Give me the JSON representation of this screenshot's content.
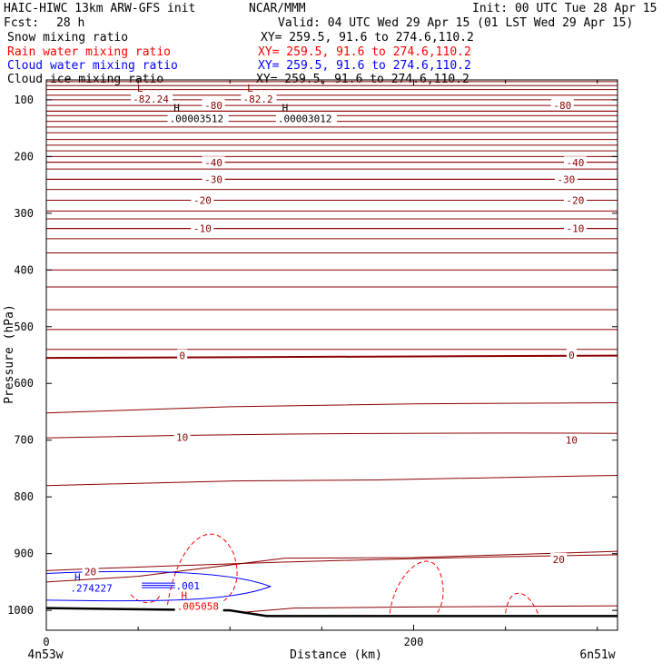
{
  "header": {
    "model_line": "HAIC-HIWC 13km ARW-GFS init",
    "org": "NCAR/MMM",
    "init": "Init: 00 UTC Tue 28 Apr 15",
    "fcst_label": "Fcst:",
    "fcst_value": "28 h",
    "valid": "Valid: 04 UTC Wed 29 Apr 15 (01 LST Wed 29 Apr 15)",
    "fields": [
      {
        "name": "Snow mixing ratio",
        "xy": "XY= 259.5, 91.6 to 274.6,110.2",
        "color": "#000000"
      },
      {
        "name": "Rain water mixing ratio",
        "xy": "XY= 259.5, 91.6 to 274.6,110.2",
        "color": "#ff0000"
      },
      {
        "name": "Cloud water mixing ratio",
        "xy": "XY= 259.5, 91.6 to 274.6,110.2",
        "color": "#0000ff"
      },
      {
        "name": "Cloud ice mixing ratio",
        "xy": "XY= 259.5, 91.6 to 274.6,110.2",
        "color": "#000000"
      }
    ]
  },
  "chart_data": {
    "type": "cross-section contour",
    "xlabel": "Distance (km)",
    "ylabel": "Pressure (hPa)",
    "x_ticks": [
      0,
      200
    ],
    "x_minor_ticks": [
      50,
      100,
      150,
      250,
      300
    ],
    "xlim": [
      0,
      311
    ],
    "y_ticks": [
      100,
      200,
      300,
      400,
      500,
      600,
      700,
      800,
      900,
      1000
    ],
    "y_scale": "linear (pressure increasing downward)",
    "ylim": [
      1035,
      65
    ],
    "x_end_labels": {
      "left": "4n53w",
      "right": "6n51w"
    },
    "colors": {
      "temperature": "#8b0000",
      "rain": "#ff0000",
      "cloud_water": "#0000ff",
      "terrain": "#000000"
    },
    "temperature_contours": [
      {
        "label": "-80",
        "p_left": 120,
        "p_right": 120
      },
      {
        "label": "-40",
        "p_left": 210,
        "p_right": 210
      },
      {
        "label": "-30",
        "p_left": 240,
        "p_right": 240
      },
      {
        "label": "-20",
        "p_left": 277,
        "p_right": 277
      },
      {
        "label": "-10",
        "p_left": 327,
        "p_right": 327
      },
      {
        "label": "0",
        "p_left": 555,
        "p_right": 551,
        "bold": true
      },
      {
        "label": "10",
        "p_left": 696,
        "p_right": 688
      },
      {
        "label": "20",
        "p_left": 930,
        "p_right": 902
      }
    ],
    "contour_labels": [
      {
        "text": "-80",
        "x": 91,
        "p": 110
      },
      {
        "text": "-80",
        "x": 281,
        "p": 110
      },
      {
        "text": "-40",
        "x": 91,
        "p": 211
      },
      {
        "text": "-40",
        "x": 288,
        "p": 211
      },
      {
        "text": "-30",
        "x": 91,
        "p": 240
      },
      {
        "text": "-30",
        "x": 283,
        "p": 240
      },
      {
        "text": "-20",
        "x": 85,
        "p": 277
      },
      {
        "text": "-20",
        "x": 288,
        "p": 277
      },
      {
        "text": "-10",
        "x": 85,
        "p": 327
      },
      {
        "text": "-10",
        "x": 288,
        "p": 327
      },
      {
        "text": "0",
        "x": 74,
        "p": 551
      },
      {
        "text": "0",
        "x": 286,
        "p": 550
      },
      {
        "text": "10",
        "x": 74,
        "p": 695
      },
      {
        "text": "10",
        "x": 286,
        "p": 700
      },
      {
        "text": "20",
        "x": 24,
        "p": 932
      },
      {
        "text": "20",
        "x": 279,
        "p": 910
      }
    ],
    "extrema": [
      {
        "marker": "L",
        "value": "-82.24",
        "x": 50,
        "p": 86,
        "color": "#8b0000"
      },
      {
        "marker": "L",
        "value": "-82.2",
        "x": 110,
        "p": 86,
        "color": "#8b0000"
      },
      {
        "marker": "H",
        "value": ".00003512",
        "x": 70,
        "p": 120,
        "color": "#000000"
      },
      {
        "marker": "H",
        "value": ".00003012",
        "x": 129,
        "p": 120,
        "color": "#000000"
      },
      {
        "marker": "H",
        "value": ".274227",
        "x": 16,
        "p": 948,
        "color": "#0000ff"
      },
      {
        "marker": "H",
        "value": ".005058",
        "x": 74,
        "p": 980,
        "color": "#ff0000"
      }
    ],
    "cloud_water_labels": [
      {
        "text": ".001",
        "x": 77,
        "p": 960
      }
    ],
    "terrain_surface": [
      [
        0,
        996
      ],
      [
        100,
        1000
      ],
      [
        120,
        1010
      ],
      [
        200,
        1010
      ],
      [
        311,
        1010
      ]
    ]
  }
}
